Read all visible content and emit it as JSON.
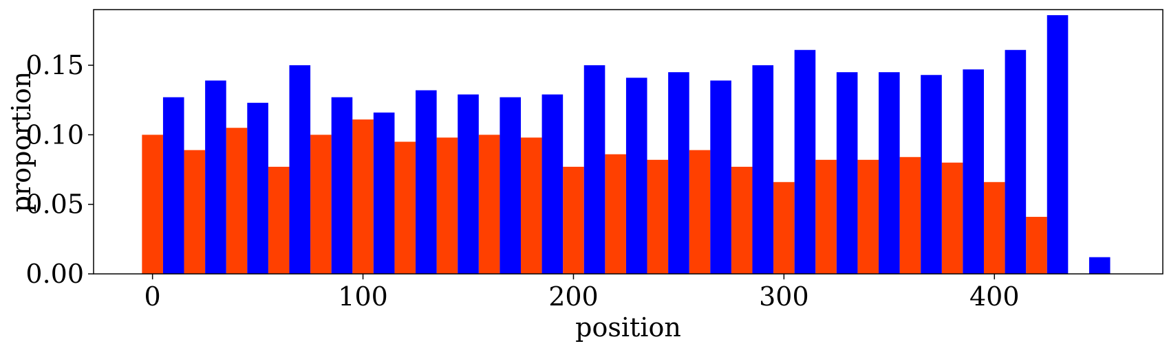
{
  "chart_data": {
    "type": "bar",
    "xlabel": "position",
    "ylabel": "proportion",
    "xlim": [
      -28,
      480
    ],
    "ylim": [
      0,
      0.19
    ],
    "xticks": [
      0,
      100,
      200,
      300,
      400
    ],
    "xtick_labels": [
      "0",
      "100",
      "200",
      "300",
      "400"
    ],
    "yticks": [
      0,
      0.05,
      0.1,
      0.15
    ],
    "ytick_labels": [
      "0.00",
      "0.05",
      "0.10",
      "0.15"
    ],
    "grid": false,
    "legend": "none",
    "bin_width": 20,
    "series": [
      {
        "color": "#ff4000",
        "x": [
          0,
          20,
          40,
          60,
          80,
          100,
          120,
          140,
          160,
          180,
          200,
          220,
          240,
          260,
          280,
          300,
          320,
          340,
          360,
          380,
          400,
          420
        ],
        "values": [
          0.1,
          0.089,
          0.105,
          0.077,
          0.1,
          0.111,
          0.095,
          0.098,
          0.1,
          0.098,
          0.077,
          0.086,
          0.082,
          0.089,
          0.077,
          0.066,
          0.082,
          0.082,
          0.084,
          0.08,
          0.066,
          0.041
        ]
      },
      {
        "color": "#0000ff",
        "x": [
          10,
          30,
          50,
          70,
          90,
          110,
          130,
          150,
          170,
          190,
          210,
          230,
          250,
          270,
          290,
          310,
          330,
          350,
          370,
          390,
          410,
          430,
          450
        ],
        "values": [
          0.127,
          0.139,
          0.123,
          0.15,
          0.127,
          0.116,
          0.132,
          0.129,
          0.127,
          0.129,
          0.15,
          0.141,
          0.145,
          0.139,
          0.15,
          0.161,
          0.145,
          0.145,
          0.143,
          0.147,
          0.161,
          0.186,
          0.012
        ]
      }
    ]
  }
}
